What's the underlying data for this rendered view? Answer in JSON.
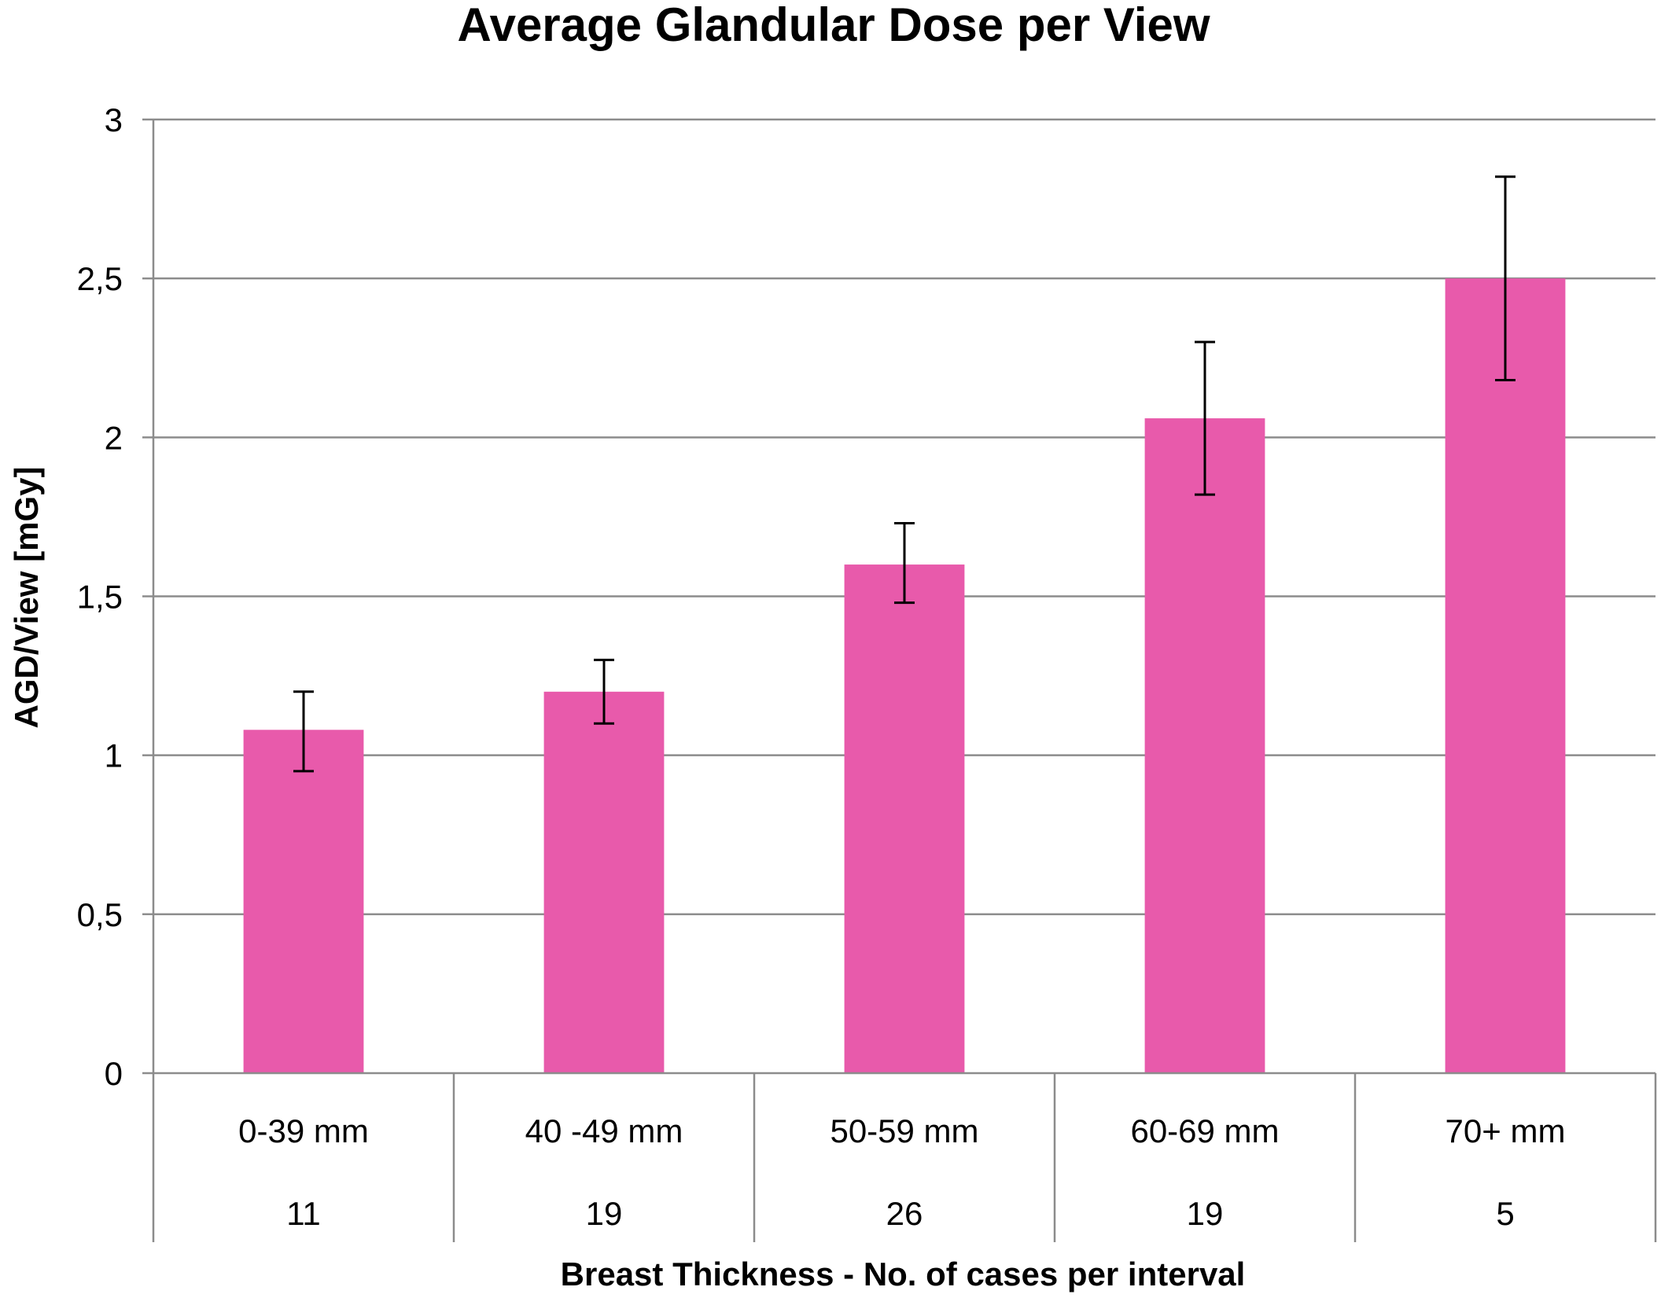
{
  "chart_data": {
    "type": "bar",
    "title": "Average Glandular Dose per View",
    "xlabel": "Breast Thickness  - No. of cases  per interval",
    "ylabel": "AGD/View  [mGy]",
    "ylim": [
      0,
      3
    ],
    "yticks": [
      0,
      0.5,
      1,
      1.5,
      2,
      2.5,
      3
    ],
    "ytick_labels": [
      "0",
      "0,5",
      "1",
      "1,5",
      "2",
      "2,5",
      "3"
    ],
    "grid": true,
    "legend": "none",
    "categories": [
      "0-39 mm",
      "40 -49 mm",
      "50-59 mm",
      "60-69 mm",
      "70+ mm"
    ],
    "cases": [
      "11",
      "19",
      "26",
      "19",
      "5"
    ],
    "series": [
      {
        "values": [
          1.08,
          1.2,
          1.6,
          2.06,
          2.5
        ],
        "error_low": [
          0.95,
          1.1,
          1.48,
          1.82,
          2.18
        ],
        "error_high": [
          1.2,
          1.3,
          1.73,
          2.3,
          2.82
        ],
        "color": "#e85aab"
      }
    ]
  }
}
